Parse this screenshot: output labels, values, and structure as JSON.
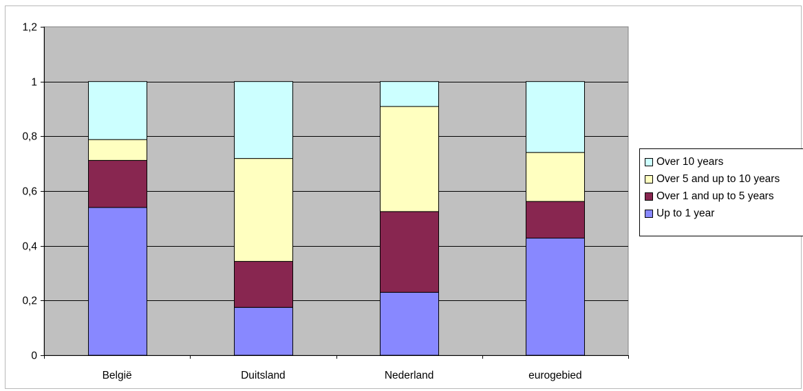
{
  "chart_data": {
    "type": "bar",
    "stacked": true,
    "title": "",
    "xlabel": "",
    "ylabel": "",
    "ylim": [
      0,
      1.2
    ],
    "yticks": [
      0,
      0.2,
      0.4,
      0.6,
      0.8,
      1,
      1.2
    ],
    "ytick_labels": [
      "0",
      "0,2",
      "0,4",
      "0,6",
      "0,8",
      "1",
      "1,2"
    ],
    "grid": true,
    "legend_position": "right",
    "plot_background": "#c0c0c0",
    "categories": [
      "België",
      "Duitsland",
      "Nederland",
      "eurogebied"
    ],
    "series": [
      {
        "name": "Up to 1 year",
        "color": "#8888ff",
        "values": [
          0.54,
          0.175,
          0.23,
          0.428
        ]
      },
      {
        "name": "Over 1 and up to 5 years",
        "color": "#882650",
        "values": [
          0.172,
          0.168,
          0.295,
          0.134
        ]
      },
      {
        "name": "Over 5 and up to 10 years",
        "color": "#ffffc0",
        "values": [
          0.076,
          0.376,
          0.384,
          0.179
        ]
      },
      {
        "name": "Over 10 years",
        "color": "#ccffff",
        "values": [
          0.212,
          0.281,
          0.091,
          0.259
        ]
      }
    ]
  }
}
